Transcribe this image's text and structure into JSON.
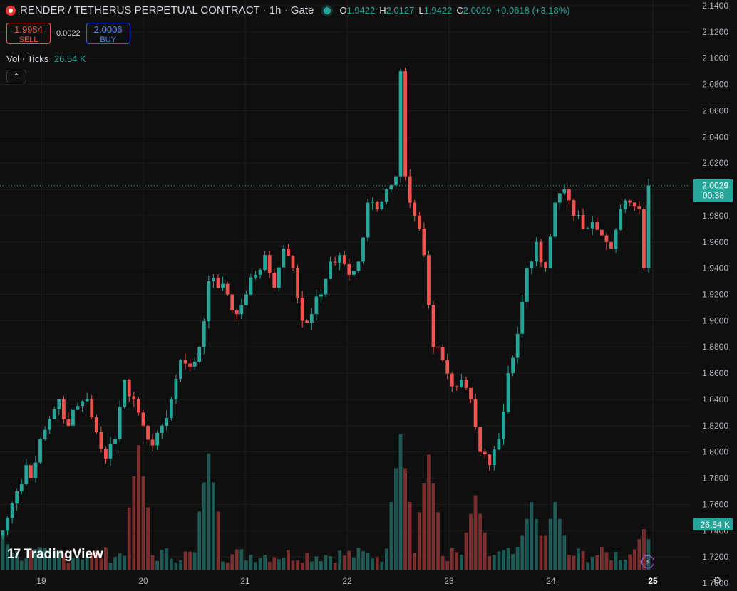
{
  "header": {
    "title": "RENDER / TETHERUS PERPETUAL CONTRACT · 1h · Gate",
    "ohlc": [
      {
        "k": "O",
        "v": "1.9422"
      },
      {
        "k": "H",
        "v": "2.0127"
      },
      {
        "k": "L",
        "v": "1.9422"
      },
      {
        "k": "C",
        "v": "2.0029"
      },
      {
        "k": "",
        "v": "+0.0618 (+3.18%)"
      }
    ]
  },
  "trade": {
    "sell_price": "1.9984",
    "sell_label": "SELL",
    "spread": "0.0022",
    "buy_price": "2.0006",
    "buy_label": "BUY"
  },
  "volume_legend": {
    "label": "Vol · Ticks",
    "value": "26.54 K"
  },
  "collapse_glyph": "⌃",
  "brand": {
    "name": "TradingView",
    "mark": "17"
  },
  "colors": {
    "up": "#26a69a",
    "down": "#ef5350",
    "volume_up": "#1e5a55",
    "volume_down": "#7a2e2e",
    "background": "#0f0f0f",
    "grid": "#1c1c1c",
    "buy": "#2962ff"
  },
  "icons": {
    "settings": "gear-icon",
    "replay": "lightning-icon",
    "collapse": "chevron-up-icon"
  },
  "chart_data": {
    "type": "candlestick",
    "interval": "1h",
    "ylim": [
      1.69,
      2.14
    ],
    "y_ticks": [
      "2.1400",
      "2.1200",
      "2.1000",
      "2.0800",
      "2.0600",
      "2.0400",
      "2.0200",
      "2.0000",
      "1.9800",
      "1.9600",
      "1.9400",
      "1.9200",
      "1.9000",
      "1.8800",
      "1.8600",
      "1.8400",
      "1.8200",
      "1.8000",
      "1.7800",
      "1.7600",
      "1.7400",
      "1.7200",
      "1.7000"
    ],
    "x_ticks": [
      "19",
      "20",
      "21",
      "22",
      "23",
      "24",
      "25"
    ],
    "last_price": "2.0029",
    "countdown": "00:38",
    "volume_label": "26.54 K",
    "grid": true,
    "anchors": [
      [
        0,
        1.74
      ],
      [
        3,
        1.77
      ],
      [
        5,
        1.79
      ],
      [
        6,
        1.78
      ],
      [
        8,
        1.81
      ],
      [
        10,
        1.825
      ],
      [
        12,
        1.84
      ],
      [
        14,
        1.82
      ],
      [
        16,
        1.835
      ],
      [
        18,
        1.84
      ],
      [
        20,
        1.815
      ],
      [
        22,
        1.795
      ],
      [
        24,
        1.81
      ],
      [
        26,
        1.855
      ],
      [
        28,
        1.84
      ],
      [
        30,
        1.82
      ],
      [
        32,
        1.805
      ],
      [
        34,
        1.82
      ],
      [
        36,
        1.84
      ],
      [
        38,
        1.87
      ],
      [
        40,
        1.865
      ],
      [
        42,
        1.88
      ],
      [
        44,
        1.93
      ],
      [
        46,
        1.925
      ],
      [
        48,
        1.92
      ],
      [
        50,
        1.905
      ],
      [
        52,
        1.92
      ],
      [
        54,
        1.935
      ],
      [
        56,
        1.95
      ],
      [
        58,
        1.925
      ],
      [
        60,
        1.955
      ],
      [
        62,
        1.94
      ],
      [
        64,
        1.9
      ],
      [
        66,
        1.905
      ],
      [
        68,
        1.92
      ],
      [
        70,
        1.945
      ],
      [
        72,
        1.95
      ],
      [
        74,
        1.935
      ],
      [
        76,
        1.945
      ],
      [
        78,
        1.99
      ],
      [
        80,
        1.985
      ],
      [
        82,
        2.0
      ],
      [
        84,
        2.01
      ],
      [
        85,
        2.09
      ],
      [
        86,
        2.01
      ],
      [
        88,
        1.98
      ],
      [
        90,
        1.95
      ],
      [
        92,
        1.88
      ],
      [
        94,
        1.87
      ],
      [
        96,
        1.85
      ],
      [
        98,
        1.855
      ],
      [
        100,
        1.84
      ],
      [
        102,
        1.8
      ],
      [
        104,
        1.79
      ],
      [
        106,
        1.81
      ],
      [
        108,
        1.86
      ],
      [
        110,
        1.89
      ],
      [
        112,
        1.94
      ],
      [
        114,
        1.96
      ],
      [
        116,
        1.94
      ],
      [
        118,
        1.99
      ],
      [
        120,
        2.0
      ],
      [
        122,
        1.98
      ],
      [
        124,
        1.97
      ],
      [
        126,
        1.975
      ],
      [
        128,
        1.965
      ],
      [
        130,
        1.955
      ],
      [
        132,
        1.985
      ],
      [
        134,
        1.99
      ],
      [
        136,
        1.985
      ],
      [
        137,
        1.94
      ],
      [
        138,
        2.0029
      ]
    ],
    "volume_peaks": [
      [
        0,
        0.25
      ],
      [
        29,
        0.92
      ],
      [
        44,
        0.86
      ],
      [
        85,
        1.0
      ],
      [
        91,
        0.85
      ],
      [
        101,
        0.55
      ],
      [
        113,
        0.5
      ],
      [
        118,
        0.5
      ],
      [
        137,
        0.3
      ]
    ]
  }
}
